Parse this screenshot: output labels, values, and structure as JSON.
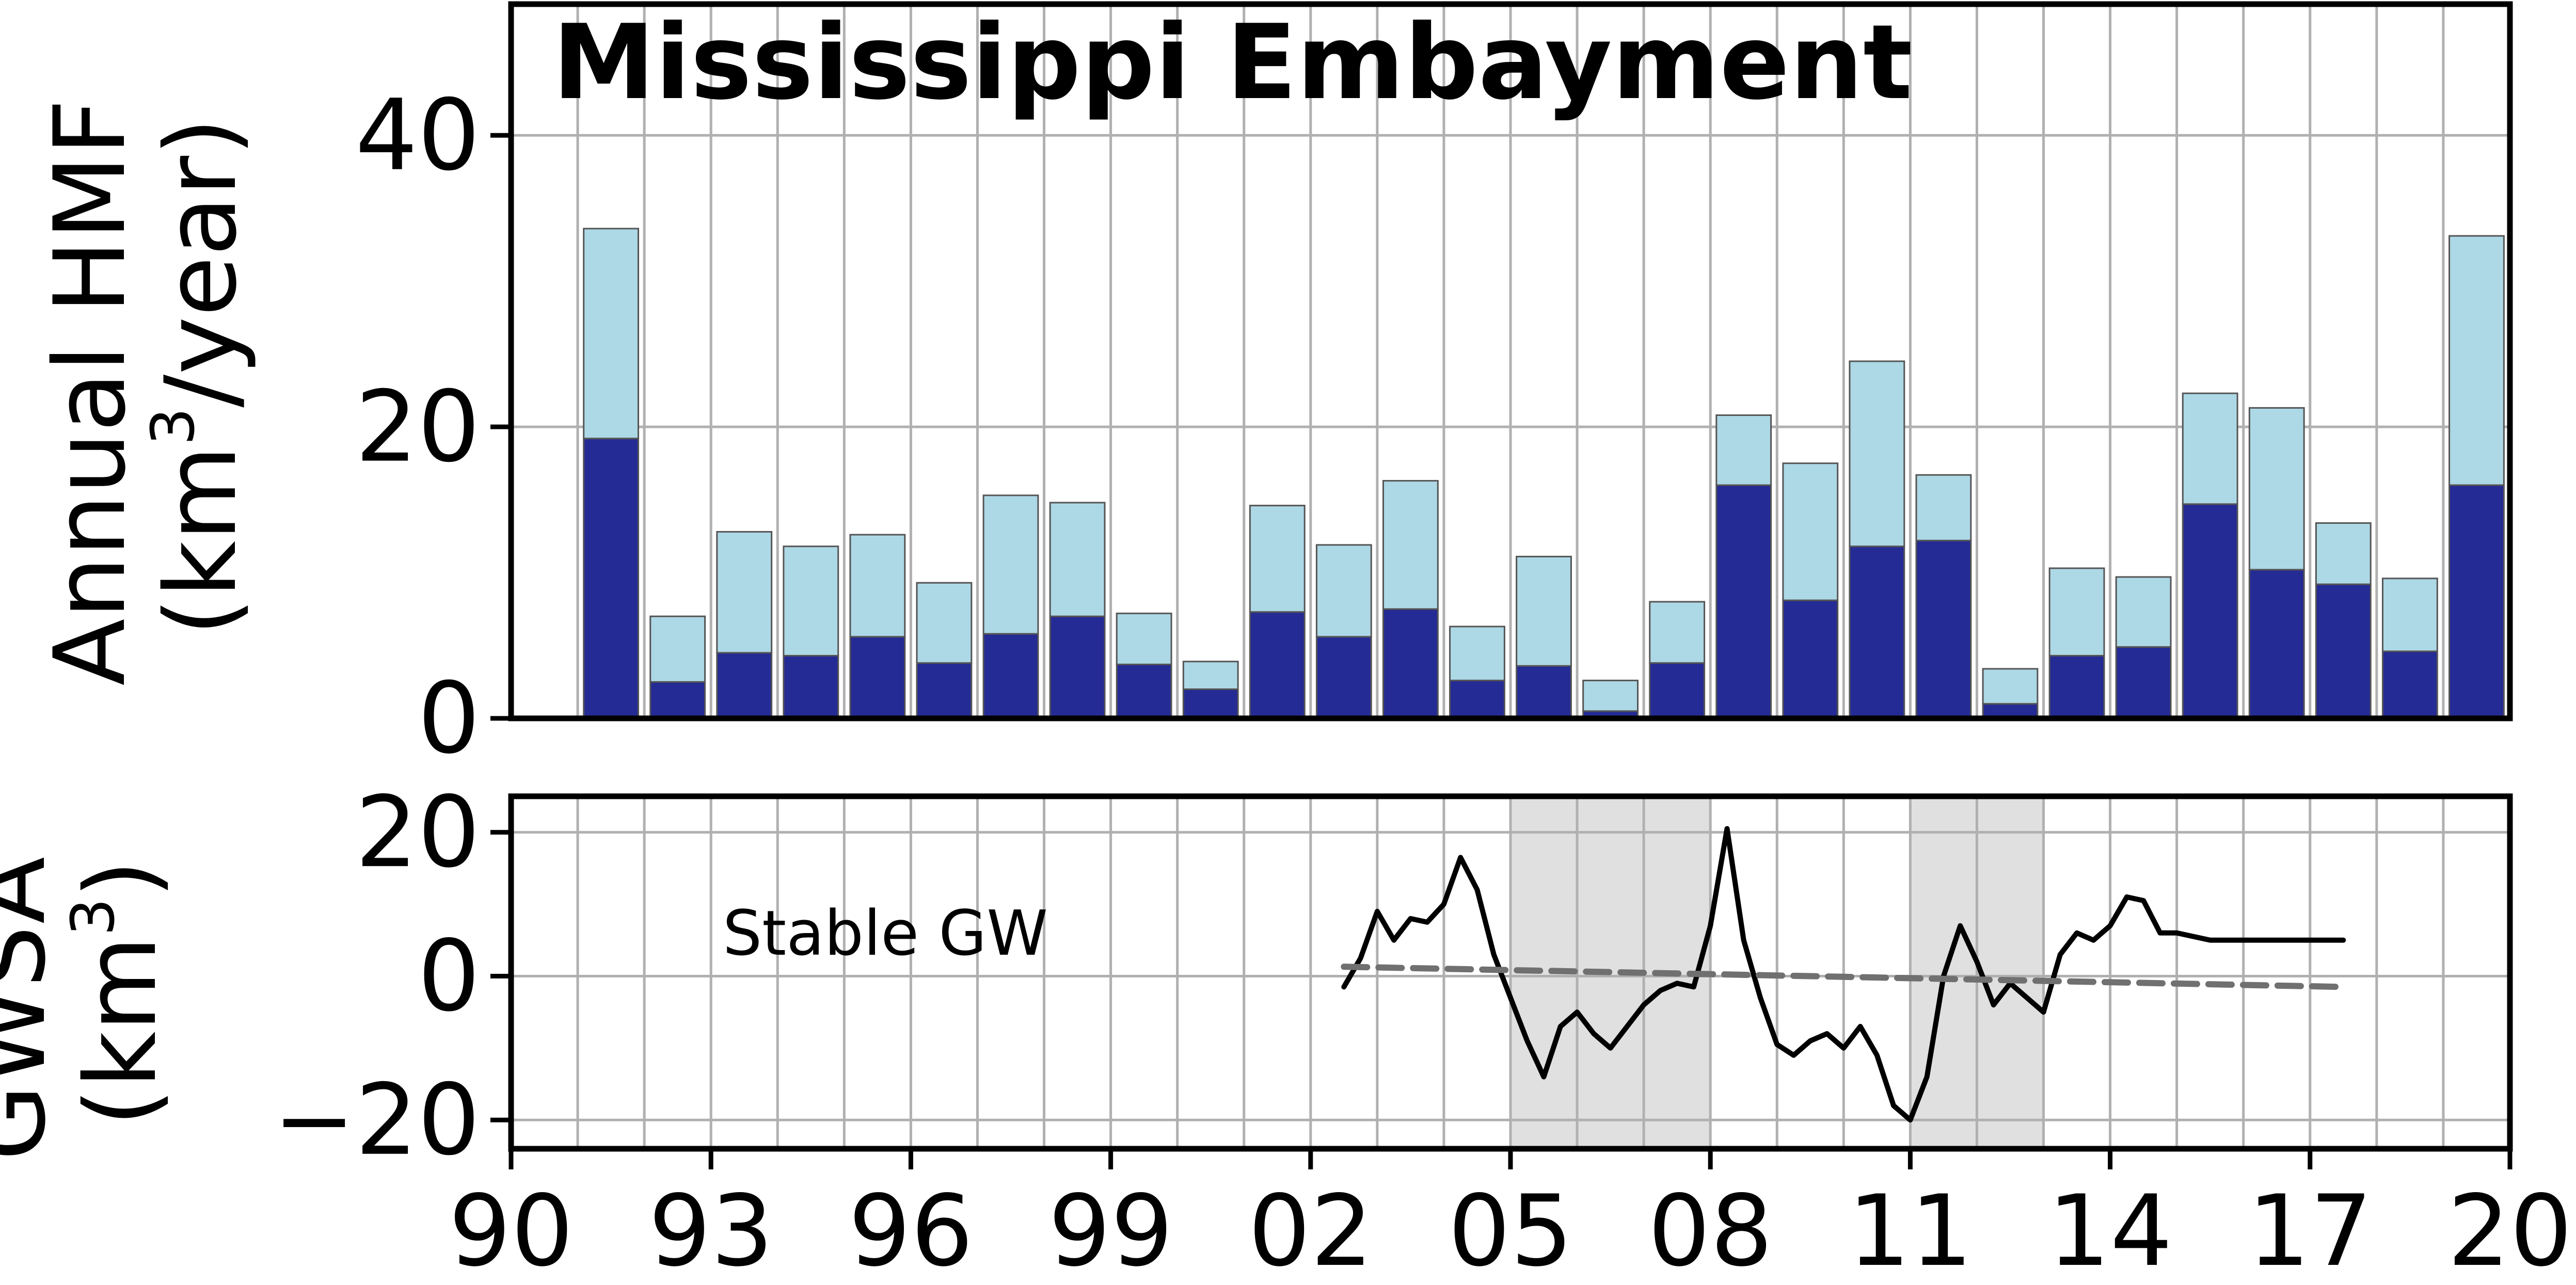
{
  "chart_data": [
    {
      "type": "bar",
      "title": "Mississippi Embayment",
      "ylabel_line1": "Annual HMF",
      "ylabel_line2_prefix": "(km",
      "ylabel_line2_sup": "3",
      "ylabel_line2_suffix": "/year)",
      "ylim": [
        0,
        49
      ],
      "yticks": [
        0,
        20,
        40
      ],
      "grid": true,
      "stacked": true,
      "x": [
        1991.5,
        1992.5,
        1993.5,
        1994.5,
        1995.5,
        1996.5,
        1997.5,
        1998.5,
        1999.5,
        2000.5,
        2001.5,
        2002.5,
        2003.5,
        2004.5,
        2005.5,
        2006.5,
        2007.5,
        2008.5,
        2009.5,
        2010.5,
        2011.5,
        2012.5,
        2013.5,
        2014.5,
        2015.5,
        2016.5,
        2017.5,
        2018.5,
        2019.5
      ],
      "series": [
        {
          "color": "#252b94",
          "values": [
            19.2,
            2.5,
            4.5,
            4.3,
            5.6,
            3.8,
            5.8,
            7.0,
            3.7,
            2.0,
            7.3,
            5.6,
            7.5,
            2.6,
            3.6,
            0.5,
            3.8,
            16.0,
            8.1,
            11.8,
            12.2,
            1.0,
            4.3,
            4.9,
            14.7,
            10.2,
            9.2,
            4.6,
            16.0
          ]
        },
        {
          "color": "#add8e6",
          "values": [
            14.4,
            4.5,
            8.3,
            7.5,
            7.0,
            5.5,
            9.5,
            7.8,
            3.5,
            1.9,
            7.3,
            6.3,
            8.8,
            3.7,
            7.5,
            2.1,
            4.2,
            4.8,
            9.4,
            12.7,
            4.5,
            2.4,
            6.0,
            4.8,
            7.6,
            11.1,
            4.2,
            5.0,
            17.1
          ]
        }
      ]
    },
    {
      "type": "line",
      "ylabel_line1": "GWSA",
      "ylabel_line2_prefix": "(km",
      "ylabel_line2_sup": "3",
      "ylabel_line2_suffix": ")",
      "ylim": [
        -24,
        25
      ],
      "yticks": [
        -20,
        0,
        20
      ],
      "xlim": [
        1990,
        2020
      ],
      "xticks": [
        1990,
        1993,
        1996,
        1999,
        2002,
        2005,
        2008,
        2011,
        2014,
        2017,
        2020
      ],
      "xtick_labels": [
        "90",
        "93",
        "96",
        "99",
        "02",
        "05",
        "08",
        "11",
        "14",
        "17",
        "20"
      ],
      "grid": true,
      "annotation": "Stable GW",
      "shaded_periods": [
        [
          2005,
          2008
        ],
        [
          2011,
          2013
        ]
      ],
      "shade_color": "#e0e0e0",
      "series": [
        {
          "style": "solid",
          "color": "#000000",
          "x": [
            2002.5,
            2002.75,
            2003.0,
            2003.25,
            2003.5,
            2003.75,
            2004.0,
            2004.25,
            2004.5,
            2004.75,
            2005.0,
            2005.25,
            2005.5,
            2005.75,
            2006.0,
            2006.25,
            2006.5,
            2006.75,
            2007.0,
            2007.25,
            2007.5,
            2007.75,
            2008.0,
            2008.25,
            2008.5,
            2008.75,
            2009.0,
            2009.25,
            2009.5,
            2009.75,
            2010.0,
            2010.25,
            2010.5,
            2010.75,
            2011.0,
            2011.25,
            2011.5,
            2011.75,
            2012.0,
            2012.25,
            2012.5,
            2012.75,
            2013.0,
            2013.25,
            2013.5,
            2013.75,
            2014.0,
            2014.25,
            2014.5,
            2014.75,
            2015.0,
            2015.25,
            2015.5,
            2015.75,
            2016.0,
            2016.25,
            2016.5,
            2016.75,
            2017.0,
            2017.25,
            2017.5
          ],
          "y": [
            -1.5,
            2.5,
            9.0,
            5.0,
            8.0,
            7.5,
            10.0,
            16.5,
            12.0,
            3.0,
            -3.0,
            -9.0,
            -14.0,
            -7.0,
            -5.0,
            -8.0,
            -10.0,
            -7.0,
            -4.0,
            -2.0,
            -1.0,
            -1.5,
            7.0,
            20.5,
            5.0,
            -3.0,
            -9.5,
            -11.0,
            -9.0,
            -8.0,
            -10.0,
            -7.0,
            -11.0,
            -18.0,
            -20.0,
            -14.0,
            0.0,
            7.0,
            2.0,
            -4.0,
            -1.0,
            -3.0,
            -5.0,
            3.0,
            6.0,
            5.0,
            7.0,
            11.0,
            10.5,
            6.0,
            6.0,
            5.5,
            5.0,
            5.0,
            5.0,
            5.0,
            5.0,
            5.0,
            5.0,
            5.0,
            5.0
          ]
        },
        {
          "style": "dashed",
          "color": "#707070",
          "x": [
            2002.5,
            2017.5
          ],
          "y": [
            1.3,
            -1.5
          ]
        }
      ]
    }
  ]
}
